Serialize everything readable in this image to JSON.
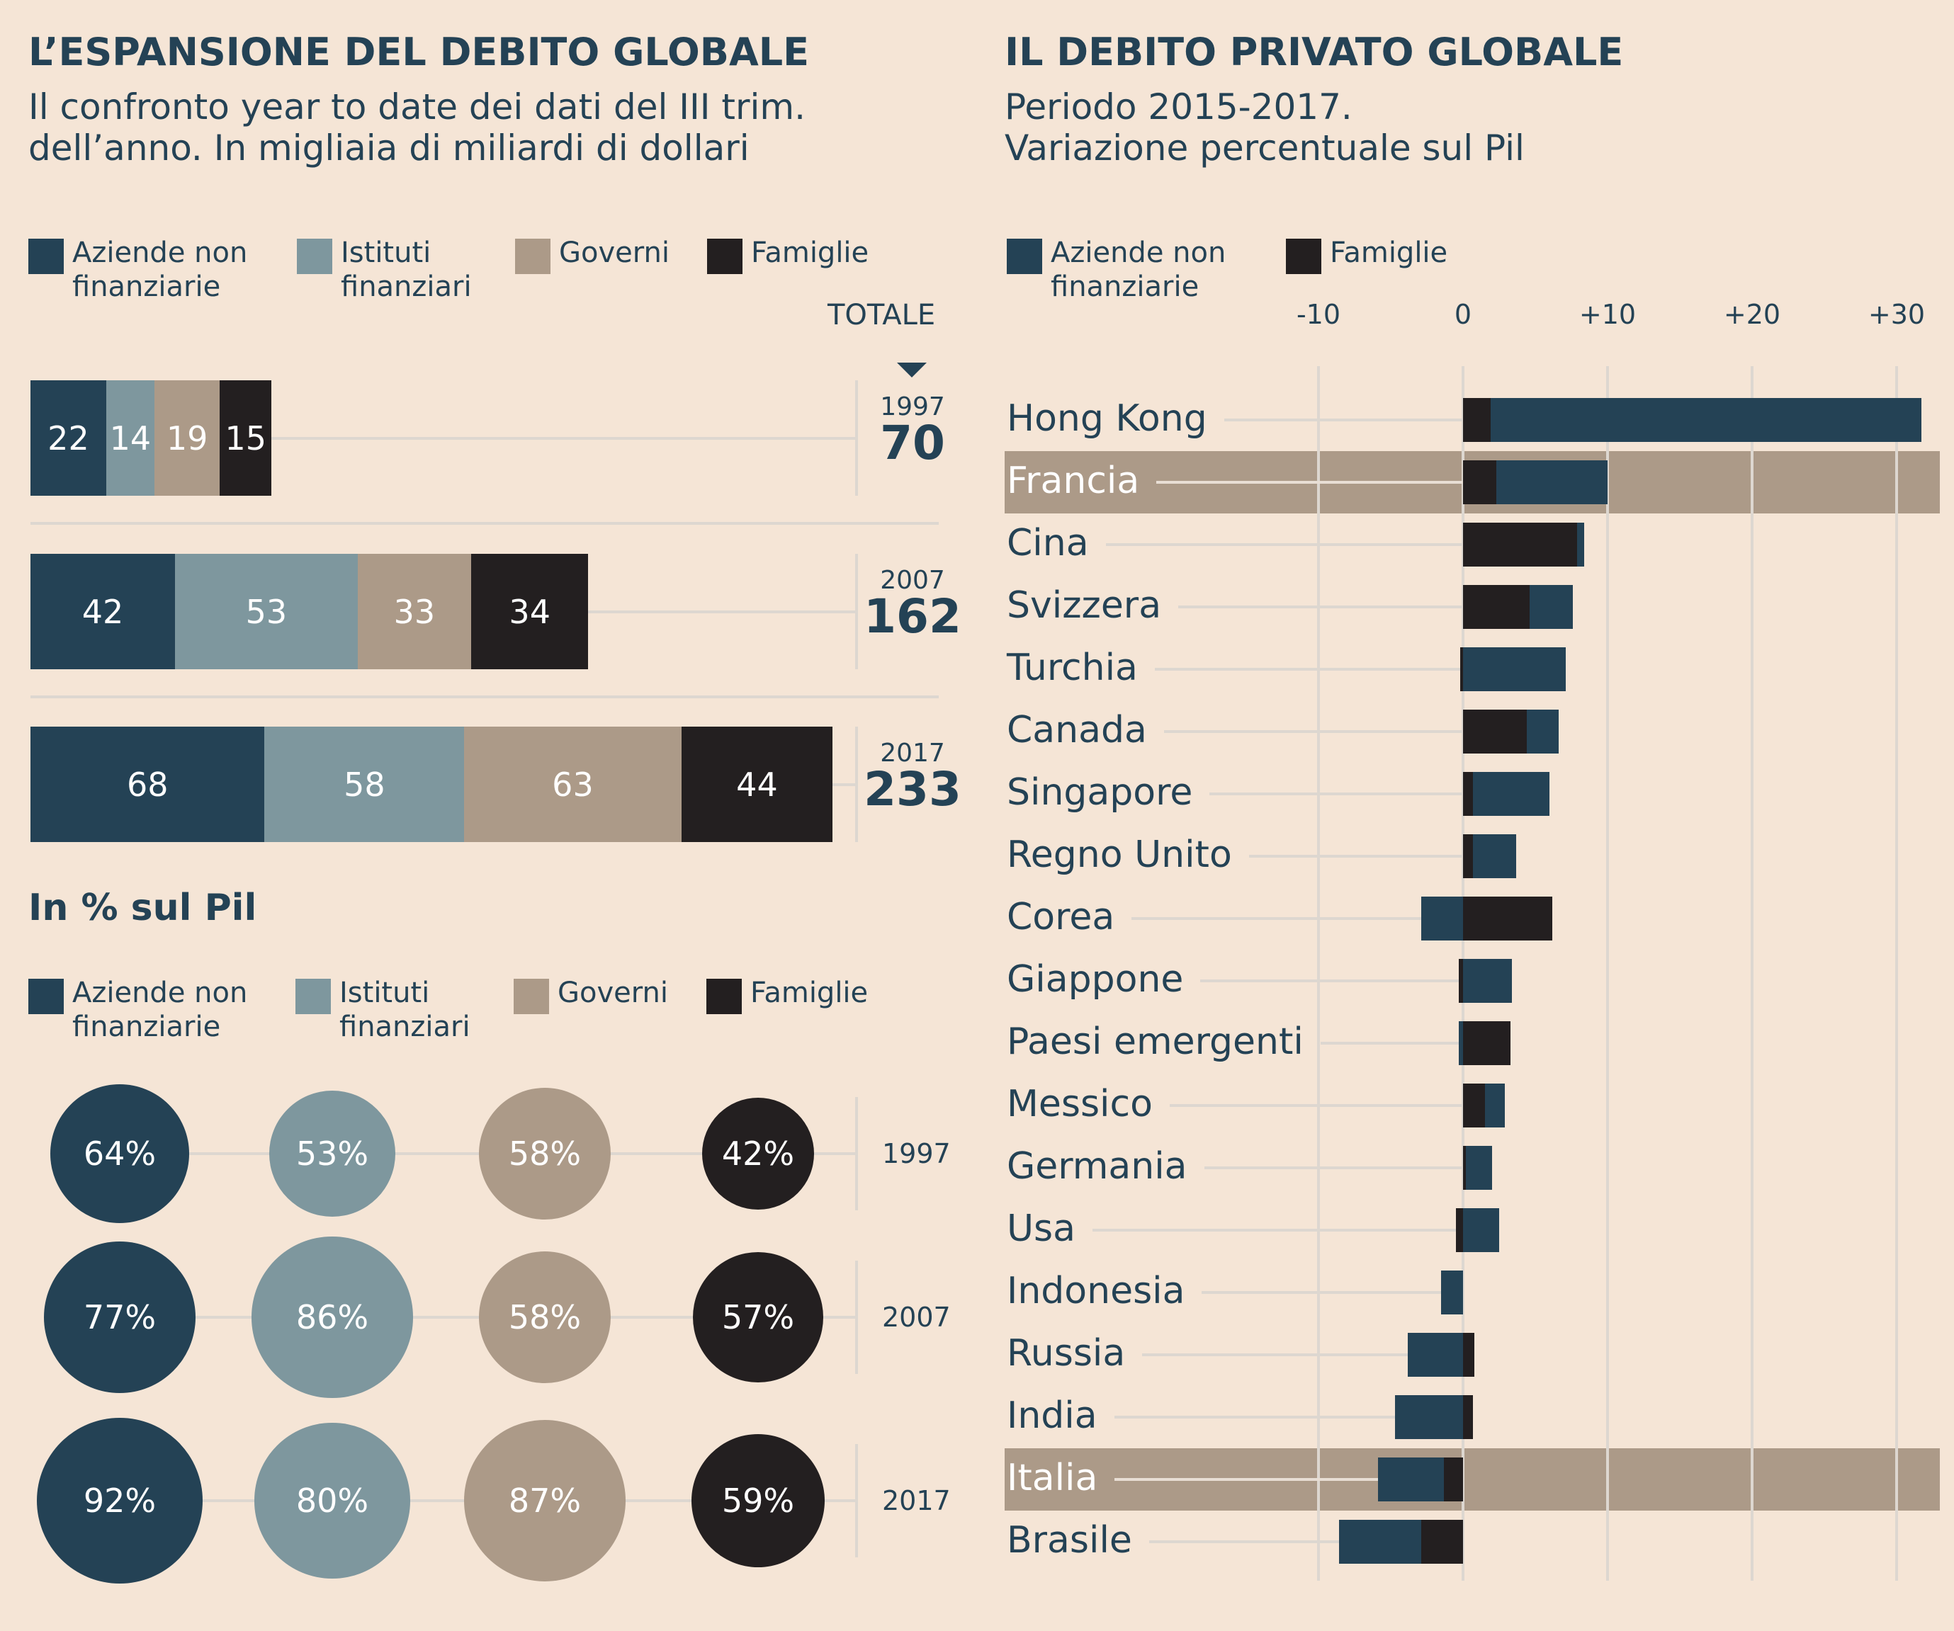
{
  "colors": {
    "background": "#F5E5D6",
    "aziende": "#244255",
    "istituti": "#7E979E",
    "governi": "#AC9A88",
    "famiglie": "#231F20",
    "text": "#244255",
    "grid": "#DDD7D0",
    "highlight": "#AC9A88"
  },
  "left": {
    "title": "L’ESPANSIONE DEL DEBITO GLOBALE",
    "subtitle_line1": "Il confronto year to date dei dati del III trim.",
    "subtitle_line2": "dell’anno. In migliaia di miliardi di dollari",
    "legend": [
      {
        "key": "aziende",
        "label": "Aziende non\nfinanziarie"
      },
      {
        "key": "istituti",
        "label": "Istituti\nfinanziari"
      },
      {
        "key": "governi",
        "label": "Governi"
      },
      {
        "key": "famiglie",
        "label": "Famiglie"
      }
    ],
    "totale_label": "TOTALE",
    "pil_heading": "In % sul Pil",
    "pil_legend": [
      {
        "key": "aziende",
        "label": "Aziende non\nfinanziarie"
      },
      {
        "key": "istituti",
        "label": "Istituti\nfinanziari"
      },
      {
        "key": "governi",
        "label": "Governi"
      },
      {
        "key": "famiglie",
        "label": "Famiglie"
      }
    ]
  },
  "right": {
    "title": "IL DEBITO PRIVATO GLOBALE",
    "subtitle_line1": "Periodo 2015-2017.",
    "subtitle_line2": "Variazione percentuale sul Pil",
    "legend": [
      {
        "key": "aziende",
        "label": "Aziende non\nfinanziarie"
      },
      {
        "key": "famiglie",
        "label": "Famiglie"
      }
    ]
  },
  "chart_data": [
    {
      "type": "bar",
      "subtype": "stacked-horizontal",
      "title": "L’ESPANSIONE DEL DEBITO GLOBALE",
      "subtitle": "Il confronto year to date dei dati del III trim. dell’anno. In migliaia di miliardi di dollari",
      "categories": [
        "1997",
        "2007",
        "2017"
      ],
      "series": [
        {
          "name": "Aziende non finanziarie",
          "values": [
            22,
            42,
            68
          ]
        },
        {
          "name": "Istituti finanziari",
          "values": [
            14,
            53,
            58
          ]
        },
        {
          "name": "Governi",
          "values": [
            19,
            33,
            63
          ]
        },
        {
          "name": "Famiglie",
          "values": [
            15,
            34,
            44
          ]
        }
      ],
      "totals": [
        70,
        162,
        233
      ],
      "totals_label": "TOTALE",
      "legend_position": "top"
    },
    {
      "type": "scatter",
      "subtype": "proportional-bubbles",
      "title": "In % sul Pil",
      "categories": [
        "1997",
        "2007",
        "2017"
      ],
      "series": [
        {
          "name": "Aziende non finanziarie",
          "values": [
            64,
            77,
            92
          ],
          "labels": [
            "64%",
            "77%",
            "92%"
          ]
        },
        {
          "name": "Istituti finanziari",
          "values": [
            53,
            86,
            80
          ],
          "labels": [
            "53%",
            "86%",
            "80%"
          ]
        },
        {
          "name": "Governi",
          "values": [
            58,
            58,
            87
          ],
          "labels": [
            "58%",
            "58%",
            "87%"
          ]
        },
        {
          "name": "Famiglie",
          "values": [
            42,
            57,
            59
          ],
          "labels": [
            "42%",
            "57%",
            "59%"
          ]
        }
      ],
      "legend_position": "top"
    },
    {
      "type": "bar",
      "subtype": "diverging-stacked-horizontal",
      "title": "IL DEBITO PRIVATO GLOBALE",
      "subtitle": "Periodo 2015-2017. Variazione percentuale sul Pil",
      "xlim": [
        -10,
        30
      ],
      "xticks": [
        -10,
        0,
        10,
        20,
        30
      ],
      "xtick_labels": [
        "-10",
        "0",
        "+10",
        "+20",
        "+30"
      ],
      "grid": true,
      "legend_position": "top-left",
      "categories": [
        "Hong Kong",
        "Francia",
        "Cina",
        "Svizzera",
        "Turchia",
        "Canada",
        "Singapore",
        "Regno Unito",
        "Corea",
        "Giappone",
        "Paesi emergenti",
        "Messico",
        "Germania",
        "Usa",
        "Indonesia",
        "Russia",
        "India",
        "Italia",
        "Brasile"
      ],
      "highlighted": [
        "Francia",
        "Italia"
      ],
      "series": [
        {
          "name": "Famiglie",
          "values": [
            1.9,
            2.3,
            7.9,
            4.6,
            -0.2,
            4.4,
            0.7,
            0.7,
            6.2,
            -0.3,
            3.3,
            1.5,
            0.2,
            -0.5,
            0,
            0.8,
            0.7,
            -1.3,
            -2.9
          ]
        },
        {
          "name": "Aziende non finanziarie",
          "values": [
            29.8,
            7.7,
            0.5,
            3.0,
            7.1,
            2.2,
            5.3,
            3.0,
            -2.9,
            3.4,
            -0.3,
            1.4,
            1.8,
            2.5,
            -1.5,
            -3.8,
            -4.7,
            -4.6,
            -5.7
          ]
        }
      ]
    }
  ]
}
